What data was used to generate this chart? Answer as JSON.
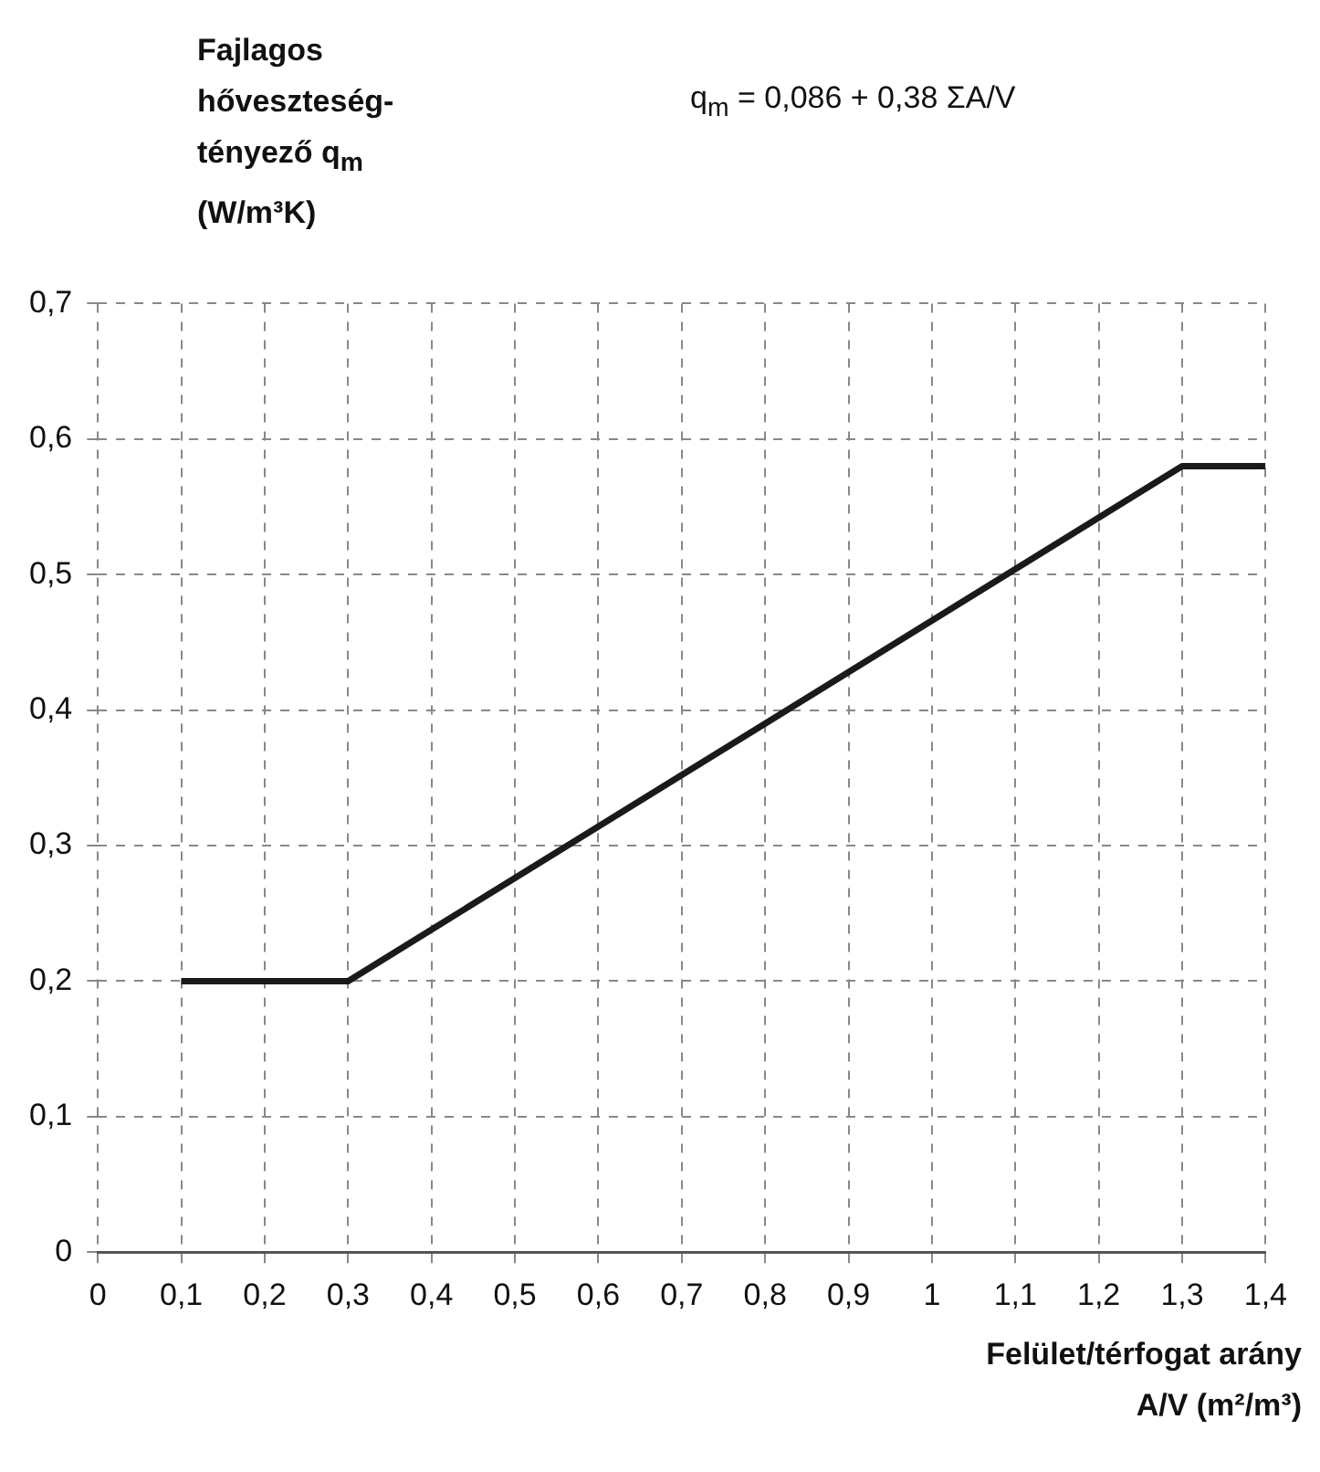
{
  "chart_data": {
    "type": "line",
    "ylabel": "Fajlagos hőveszteség-tényező q$_{m}$ (W/m³K)",
    "xlabel": "Felület/térfogat arány A/V (m²/m³)",
    "annotations": [
      "q$_{m}$ = 0,086 + 0,38 ΣA/V"
    ],
    "x": [
      0.1,
      0.3,
      1.3,
      1.4
    ],
    "series": [
      {
        "color": "#1a1a1a",
        "values": [
          0.2,
          0.2,
          0.58,
          0.58
        ]
      }
    ],
    "xlim": [
      0,
      1.4
    ],
    "xticks": [
      0,
      {
        "value": 0.1,
        "label": "0,1"
      },
      {
        "value": 0.2,
        "label": "0,2"
      },
      {
        "value": 0.3,
        "label": "0,3"
      },
      {
        "value": 0.4,
        "label": "0,4"
      },
      {
        "value": 0.5,
        "label": "0,5"
      },
      {
        "value": 0.6,
        "label": "0,6"
      },
      {
        "value": 0.7,
        "label": "0,7"
      },
      {
        "value": 0.8,
        "label": "0,8"
      },
      {
        "value": 0.9,
        "label": "0,9"
      },
      1,
      {
        "value": 1.1,
        "label": "1,1"
      },
      {
        "value": 1.2,
        "label": "1,2"
      },
      {
        "value": 1.3,
        "label": "1,3"
      },
      {
        "value": 1.4,
        "label": "1,4"
      }
    ],
    "ylim": [
      0,
      0.7
    ],
    "yticks": [
      0,
      {
        "value": 0.1,
        "label": "0,1"
      },
      {
        "value": 0.2,
        "label": "0,2"
      },
      {
        "value": 0.3,
        "label": "0,3"
      },
      {
        "value": 0.4,
        "label": "0,4"
      },
      {
        "value": 0.5,
        "label": "0,5"
      },
      {
        "value": 0.6,
        "label": "0,6"
      },
      {
        "value": 0.7,
        "label": "0,7"
      }
    ],
    "grid": true,
    "legend": false,
    "marker": "none",
    "line_style": "solid"
  }
}
